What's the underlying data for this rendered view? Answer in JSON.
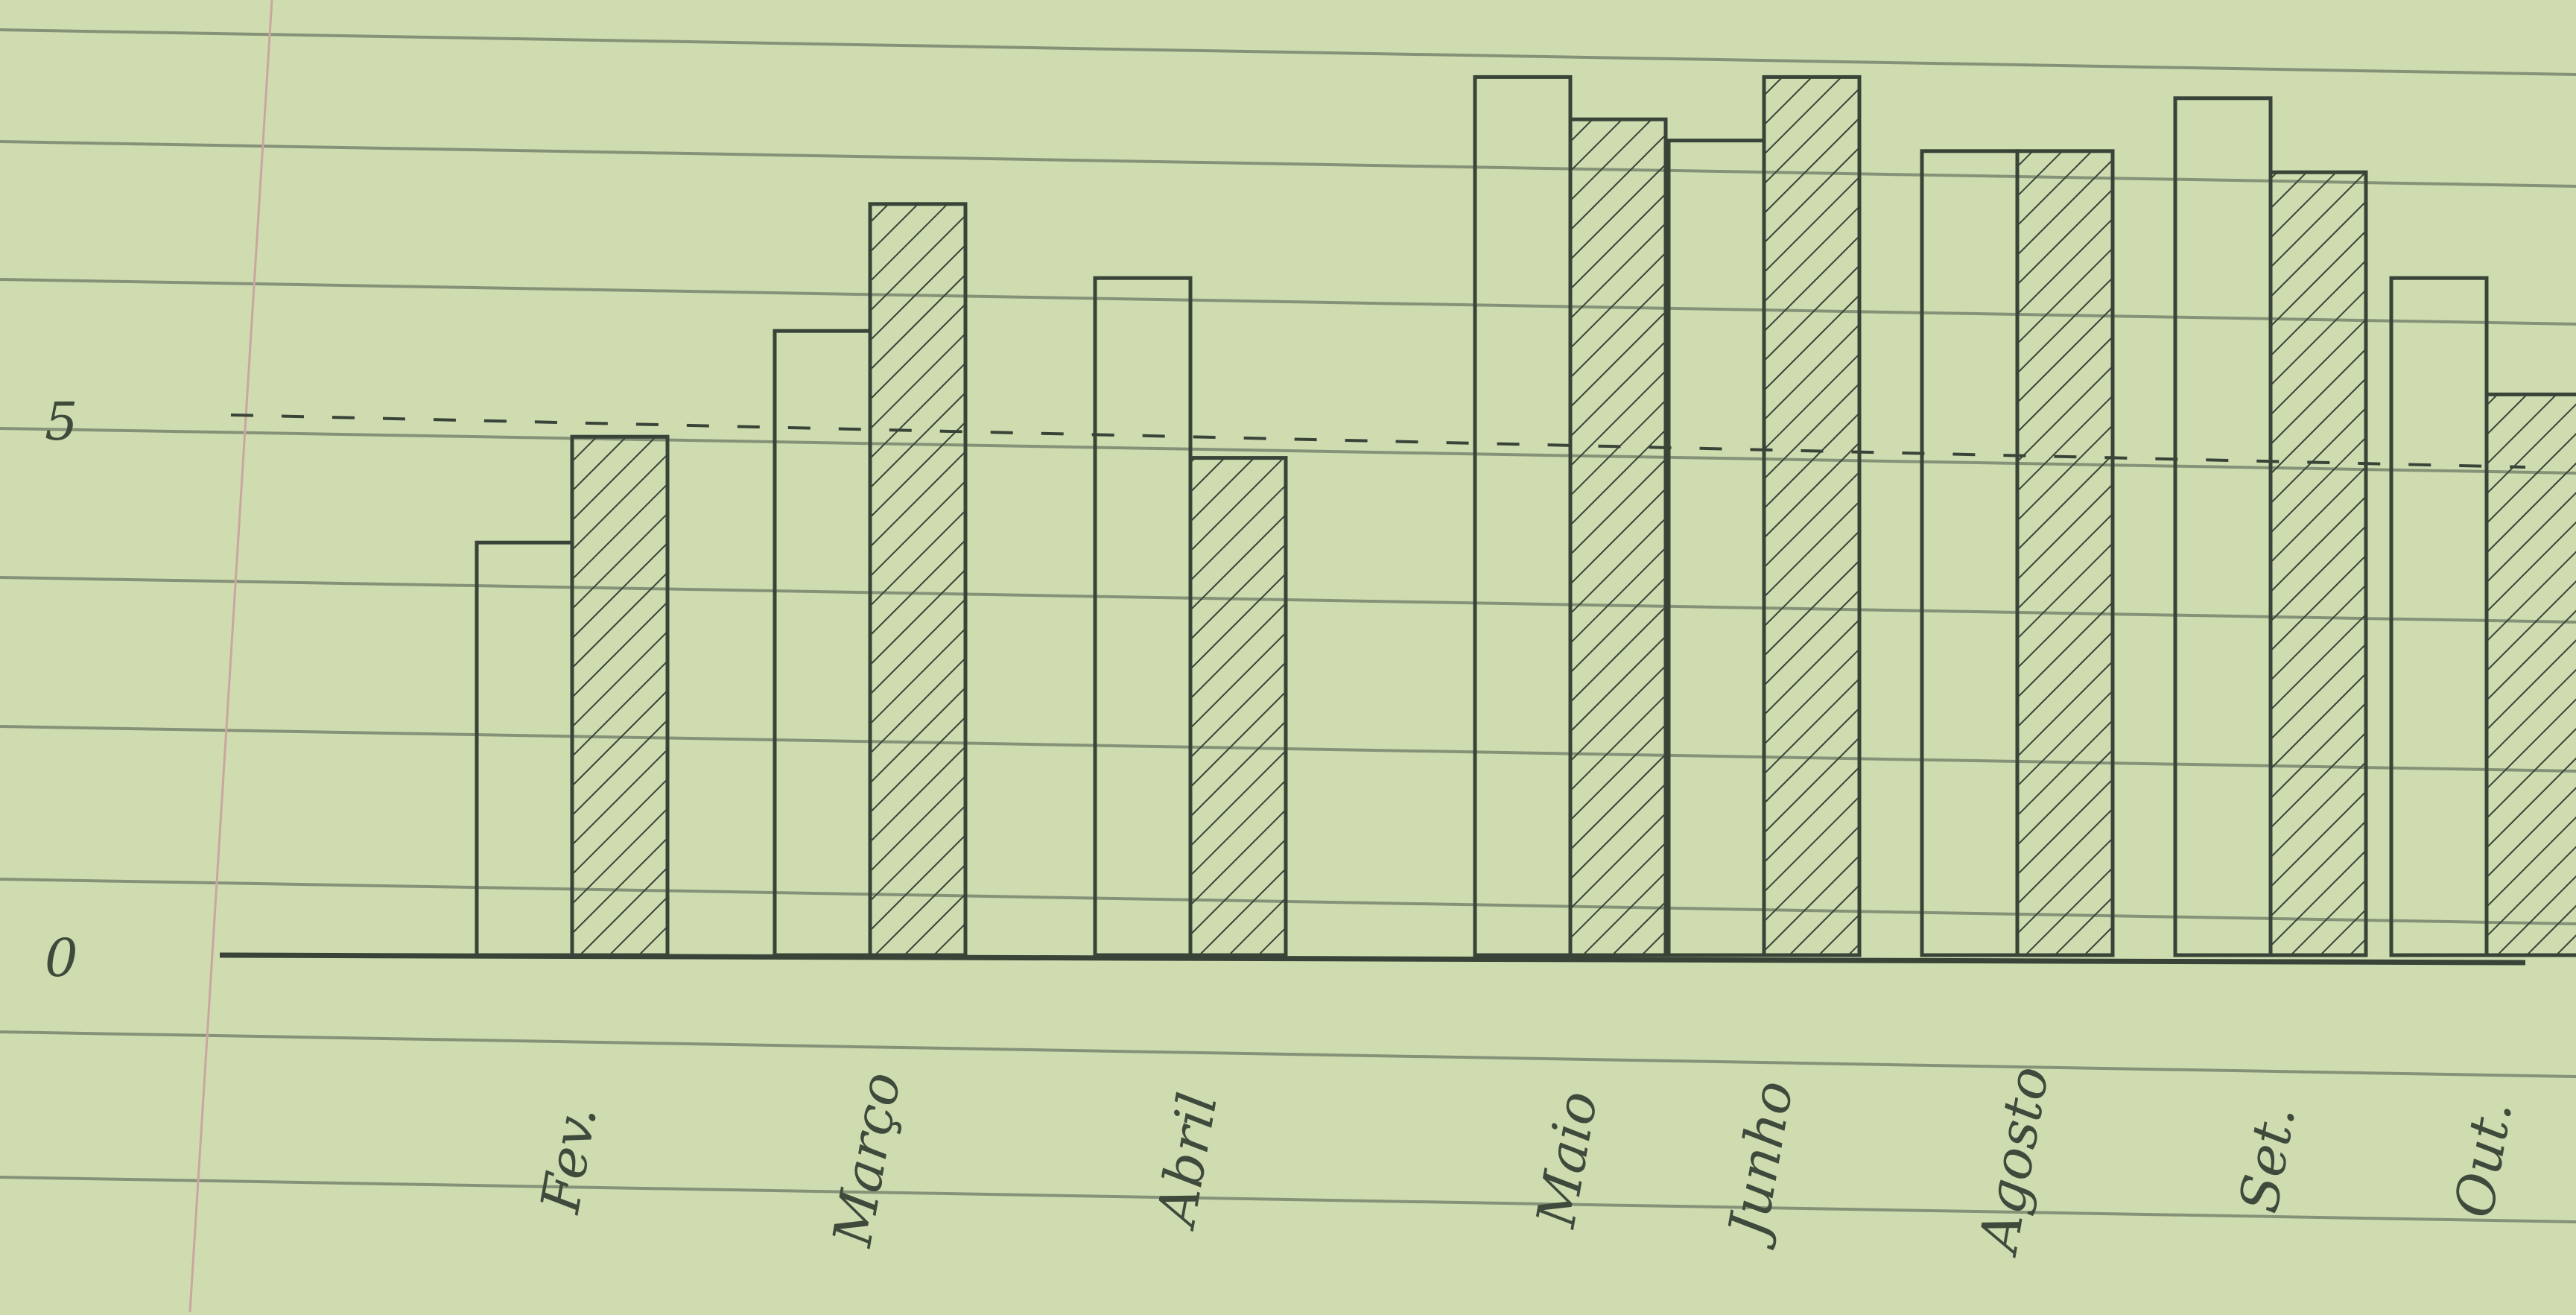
{
  "chart_data": {
    "type": "bar",
    "title": "",
    "xlabel": "",
    "ylabel": "",
    "ylim": [
      0,
      8.5
    ],
    "yticks": [
      0,
      5
    ],
    "categories": [
      "Fev.",
      "Março",
      "Abril",
      "Maio",
      "Junho",
      "Agosto",
      "Set.",
      "Out."
    ],
    "reference_line": 5,
    "grid": true,
    "series": [
      {
        "values": [
          3.9,
          5.9,
          6.4,
          8.3,
          7.7,
          7.6,
          8.1,
          6.4
        ],
        "style": "open"
      },
      {
        "values": [
          4.9,
          7.1,
          4.7,
          7.9,
          8.3,
          7.6,
          7.4,
          5.3
        ],
        "style": "hatched"
      }
    ]
  },
  "colors": {
    "paper": "#cfdcb0",
    "ruled_line": "#5e6b5a",
    "ink": "#3a4338",
    "margin_line": "#c9a7a0"
  }
}
